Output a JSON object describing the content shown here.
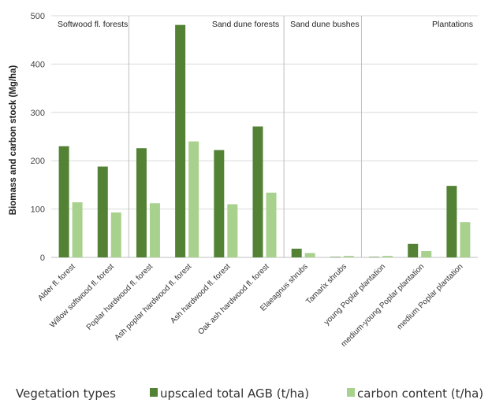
{
  "chart_data": {
    "type": "bar",
    "ylabel": "Biomass and carbon stock (Mg/ha)",
    "xlabel": "Vegetation types",
    "ylim": [
      0,
      500
    ],
    "yticks": [
      0,
      100,
      200,
      300,
      400,
      500
    ],
    "grid": true,
    "legend_position": "bottom",
    "categories": [
      "Alder fl. forest",
      "Willow softwood fl. forest",
      "Poplar hardwood fl. forest",
      "Ash poplar hardwood fl. forest",
      "Ash hardwood fl. forest",
      "Oak ash hardwood fl. forest",
      "Elaeagnus shrubs",
      "Tamarix shrubs",
      "young Poplar plantation",
      "medium-young Poplar plantation",
      "medium Poplar plantation"
    ],
    "series": [
      {
        "name": "upscaled total AGB (t/ha)",
        "color": "#548235",
        "values": [
          230,
          188,
          226,
          481,
          222,
          271,
          18,
          1,
          1,
          28,
          148
        ]
      },
      {
        "name": "carbon content (t/ha)",
        "color": "#a9d18e",
        "values": [
          114,
          93,
          112,
          240,
          110,
          134,
          9,
          3,
          3,
          13,
          73
        ]
      }
    ],
    "groups": [
      {
        "label": "Softwood fl. forests",
        "start": 0,
        "end": 1,
        "align": "left"
      },
      {
        "label": "Sand dune forests",
        "start": 2,
        "end": 5,
        "align": "right"
      },
      {
        "label": "Sand dune bushes",
        "start": 6,
        "end": 7,
        "align": "left"
      },
      {
        "label": "Plantations",
        "start": 8,
        "end": 10,
        "align": "right"
      }
    ],
    "colors": {
      "grid": "#d9d9d9",
      "separator": "#bfbfbf",
      "axis": "#bfbfbf"
    }
  }
}
